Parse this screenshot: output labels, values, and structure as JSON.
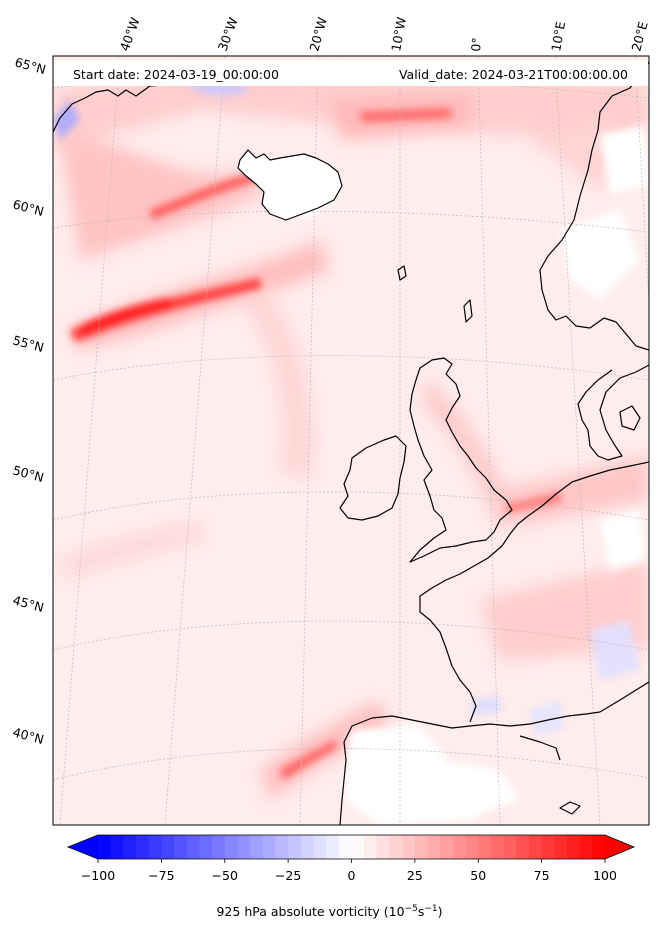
{
  "header": {
    "start_date": "Start date: 2024-03-19_00:00:00",
    "valid_date": "Valid_date: 2024-03-21T00:00:00.00"
  },
  "longitude_labels": [
    "40°W",
    "30°W",
    "20°W",
    "10°W",
    "0°",
    "10°E",
    "20°E"
  ],
  "latitude_labels": [
    "65°N",
    "60°N",
    "55°N",
    "50°N",
    "45°N",
    "40°N"
  ],
  "colorbar": {
    "ticks": [
      "−100",
      "−75",
      "−50",
      "−25",
      "0",
      "25",
      "50",
      "75",
      "100"
    ],
    "title_prefix": "925 hPa absolute vorticity (10",
    "exp1": "−5",
    "mid": "s",
    "exp2": "−1",
    "suffix": ")",
    "range": [
      -100,
      100
    ],
    "levels": 40,
    "colormap": "bwr",
    "extend": "both"
  },
  "colors": {
    "negative_max": "#0000ff",
    "zero": "#ffffff",
    "positive_max": "#ff0000",
    "coastline": "#000000",
    "gridline": "#b0b0b0"
  }
}
